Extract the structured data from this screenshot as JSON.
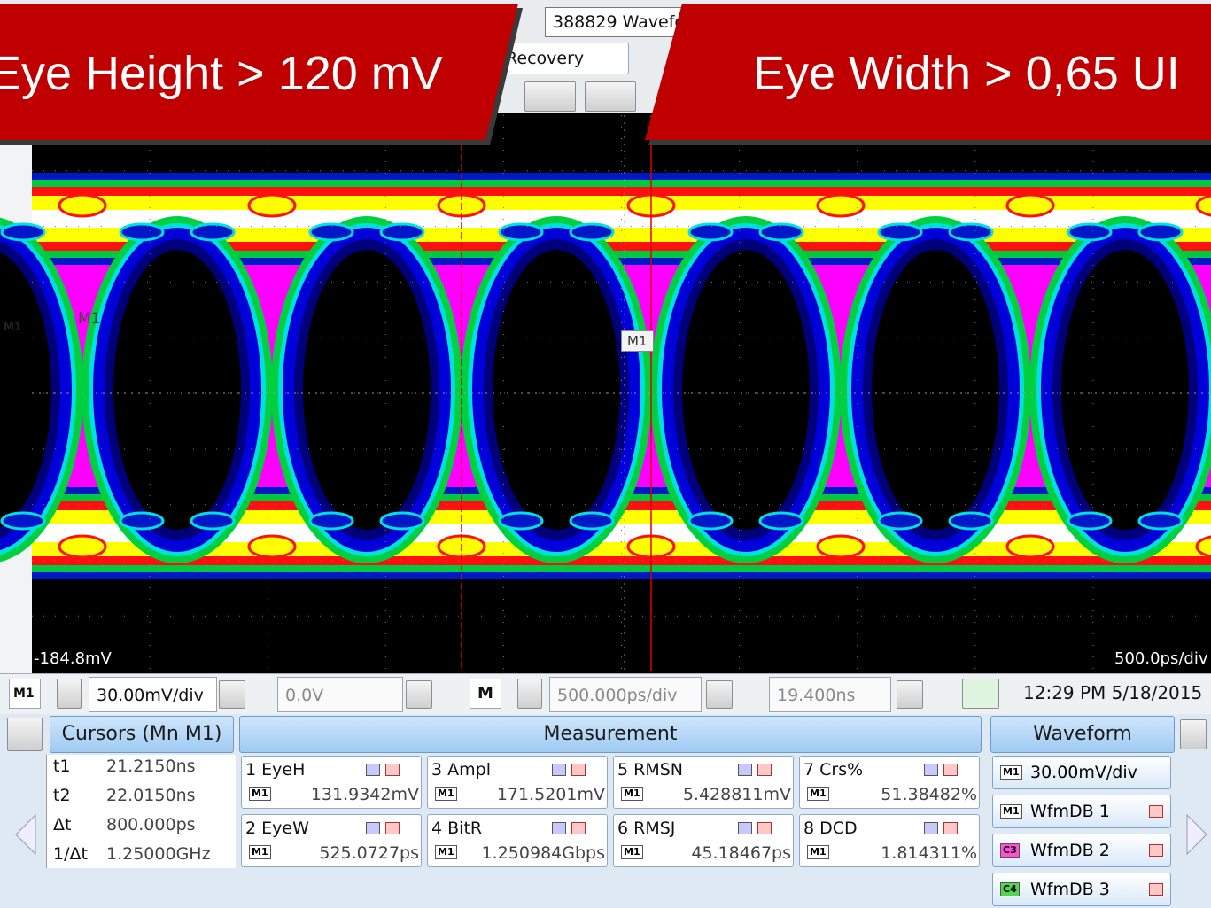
{
  "banners": {
    "left": "Eye Height > 120 mV",
    "right": "Eye Width > 0,65 UI"
  },
  "toolbar": {
    "window_title": "388829 Wavefo",
    "dropdown": "k Recovery"
  },
  "display": {
    "trace_marker": "M1",
    "trace_label": "M1",
    "cursor_tag": "M1",
    "offset_label": "-184.8mV",
    "timebase_label": "500.0ps/div"
  },
  "controls": {
    "source": "M1",
    "vertical_scale": "30.00mV/div",
    "offset": "0.0V",
    "math_button": "M",
    "horizontal_scale": "500.000ps/div",
    "position": "19.400ns",
    "timestamp": "12:29 PM 5/18/2015"
  },
  "cursors": {
    "title": "Cursors (Mn M1)",
    "rows": [
      [
        "t1",
        "21.2150ns"
      ],
      [
        "t2",
        "22.0150ns"
      ],
      [
        "Δt",
        "800.000ps"
      ],
      [
        "1/Δt",
        "1.25000GHz"
      ]
    ]
  },
  "measurements": {
    "title": "Measurement",
    "items": [
      {
        "label": "1 EyeH",
        "source": "M1",
        "value": "131.9342mV"
      },
      {
        "label": "2 EyeW",
        "source": "M1",
        "value": "525.0727ps"
      },
      {
        "label": "3 Ampl",
        "source": "M1",
        "value": "171.5201mV"
      },
      {
        "label": "4 BitR",
        "source": "M1",
        "value": "1.250984Gbps"
      },
      {
        "label": "5 RMSN",
        "source": "M1",
        "value": "5.428811mV"
      },
      {
        "label": "6 RMSJ",
        "source": "M1",
        "value": "45.18467ps"
      },
      {
        "label": "7 Crs%",
        "source": "M1",
        "value": "51.38482%"
      },
      {
        "label": "8 DCD",
        "source": "M1",
        "value": "1.814311%"
      }
    ]
  },
  "waveforms": {
    "title": "Waveform",
    "items": [
      {
        "badge": "M1",
        "label": "30.00mV/div"
      },
      {
        "badge": "M1",
        "label": "WfmDB 1"
      },
      {
        "badge": "C3",
        "label": "WfmDB 2"
      },
      {
        "badge": "C4",
        "label": "WfmDB 3"
      }
    ]
  }
}
